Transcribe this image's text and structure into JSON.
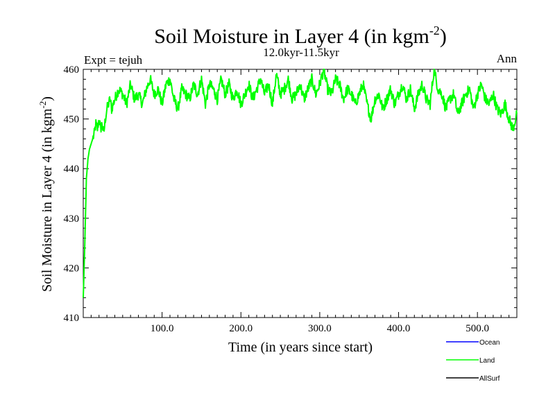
{
  "chart_data": {
    "type": "line",
    "title": "Soil Moisture in Layer 4 (in kgm",
    "title_sup": "-2",
    "title_end": ")",
    "subtitle": "12.0kyr-11.5kyr",
    "left_label": "Expt = tejuh",
    "right_label": "Ann",
    "xlabel": "Time (in years since start)",
    "ylabel": "Soil Moisture in Layer 4 (in kgm",
    "ylabel_sup": "-2",
    "ylabel_end": ")",
    "xlim": [
      0,
      550
    ],
    "ylim": [
      410,
      460
    ],
    "xticks": [
      100,
      200,
      300,
      400,
      500
    ],
    "xtick_labels": [
      "100.0",
      "200.0",
      "300.0",
      "400.0",
      "500.0"
    ],
    "yticks": [
      410,
      420,
      430,
      440,
      450,
      460
    ],
    "ytick_labels": [
      "410",
      "420",
      "430",
      "440",
      "450",
      "460"
    ],
    "legend": [
      {
        "name": "Ocean",
        "color": "#0000ff"
      },
      {
        "name": "Land",
        "color": "#00ff00"
      },
      {
        "name": "AllSurf",
        "color": "#000000"
      }
    ],
    "series": [
      {
        "name": "Land",
        "color": "#00ff00",
        "x": [
          0,
          2,
          4,
          6,
          8,
          10,
          12,
          14,
          16,
          18,
          20,
          22,
          24,
          26,
          28,
          30,
          32,
          34,
          36,
          38,
          40,
          45,
          50,
          55,
          60,
          65,
          70,
          75,
          80,
          85,
          90,
          95,
          100,
          105,
          110,
          115,
          120,
          125,
          130,
          135,
          140,
          145,
          150,
          155,
          160,
          165,
          170,
          175,
          180,
          185,
          190,
          195,
          200,
          205,
          210,
          215,
          220,
          225,
          230,
          235,
          240,
          245,
          250,
          255,
          260,
          265,
          270,
          275,
          280,
          285,
          290,
          295,
          300,
          305,
          310,
          315,
          320,
          325,
          330,
          335,
          340,
          345,
          350,
          355,
          360,
          365,
          370,
          375,
          380,
          385,
          390,
          395,
          400,
          405,
          410,
          415,
          420,
          425,
          430,
          435,
          440,
          445,
          450,
          455,
          460,
          465,
          470,
          475,
          480,
          485,
          490,
          495,
          500,
          505,
          510,
          515,
          520,
          525,
          530,
          535,
          540,
          545,
          550
        ],
        "values": [
          414,
          425,
          438,
          442,
          444,
          445,
          446,
          447,
          449,
          448,
          450,
          448,
          449,
          447,
          450,
          452,
          453,
          454,
          452,
          453,
          454,
          456,
          455,
          453,
          457,
          454,
          455,
          453,
          456,
          458,
          455,
          456,
          453,
          457,
          458,
          454,
          452,
          456,
          455,
          454,
          457,
          455,
          458,
          453,
          457,
          456,
          454,
          458,
          455,
          457,
          454,
          456,
          453,
          455,
          457,
          454,
          456,
          458,
          455,
          457,
          453,
          459,
          455,
          456,
          458,
          454,
          455,
          457,
          454,
          456,
          458,
          455,
          457,
          460,
          456,
          455,
          458,
          457,
          454,
          456,
          455,
          453,
          455,
          457,
          453,
          450,
          454,
          455,
          452,
          454,
          456,
          453,
          455,
          457,
          454,
          456,
          452,
          455,
          457,
          454,
          453,
          460,
          456,
          455,
          452,
          454,
          455,
          451,
          453,
          455,
          456,
          452,
          455,
          457,
          454,
          453,
          455,
          452,
          451,
          453,
          450,
          448,
          451
        ]
      }
    ]
  }
}
